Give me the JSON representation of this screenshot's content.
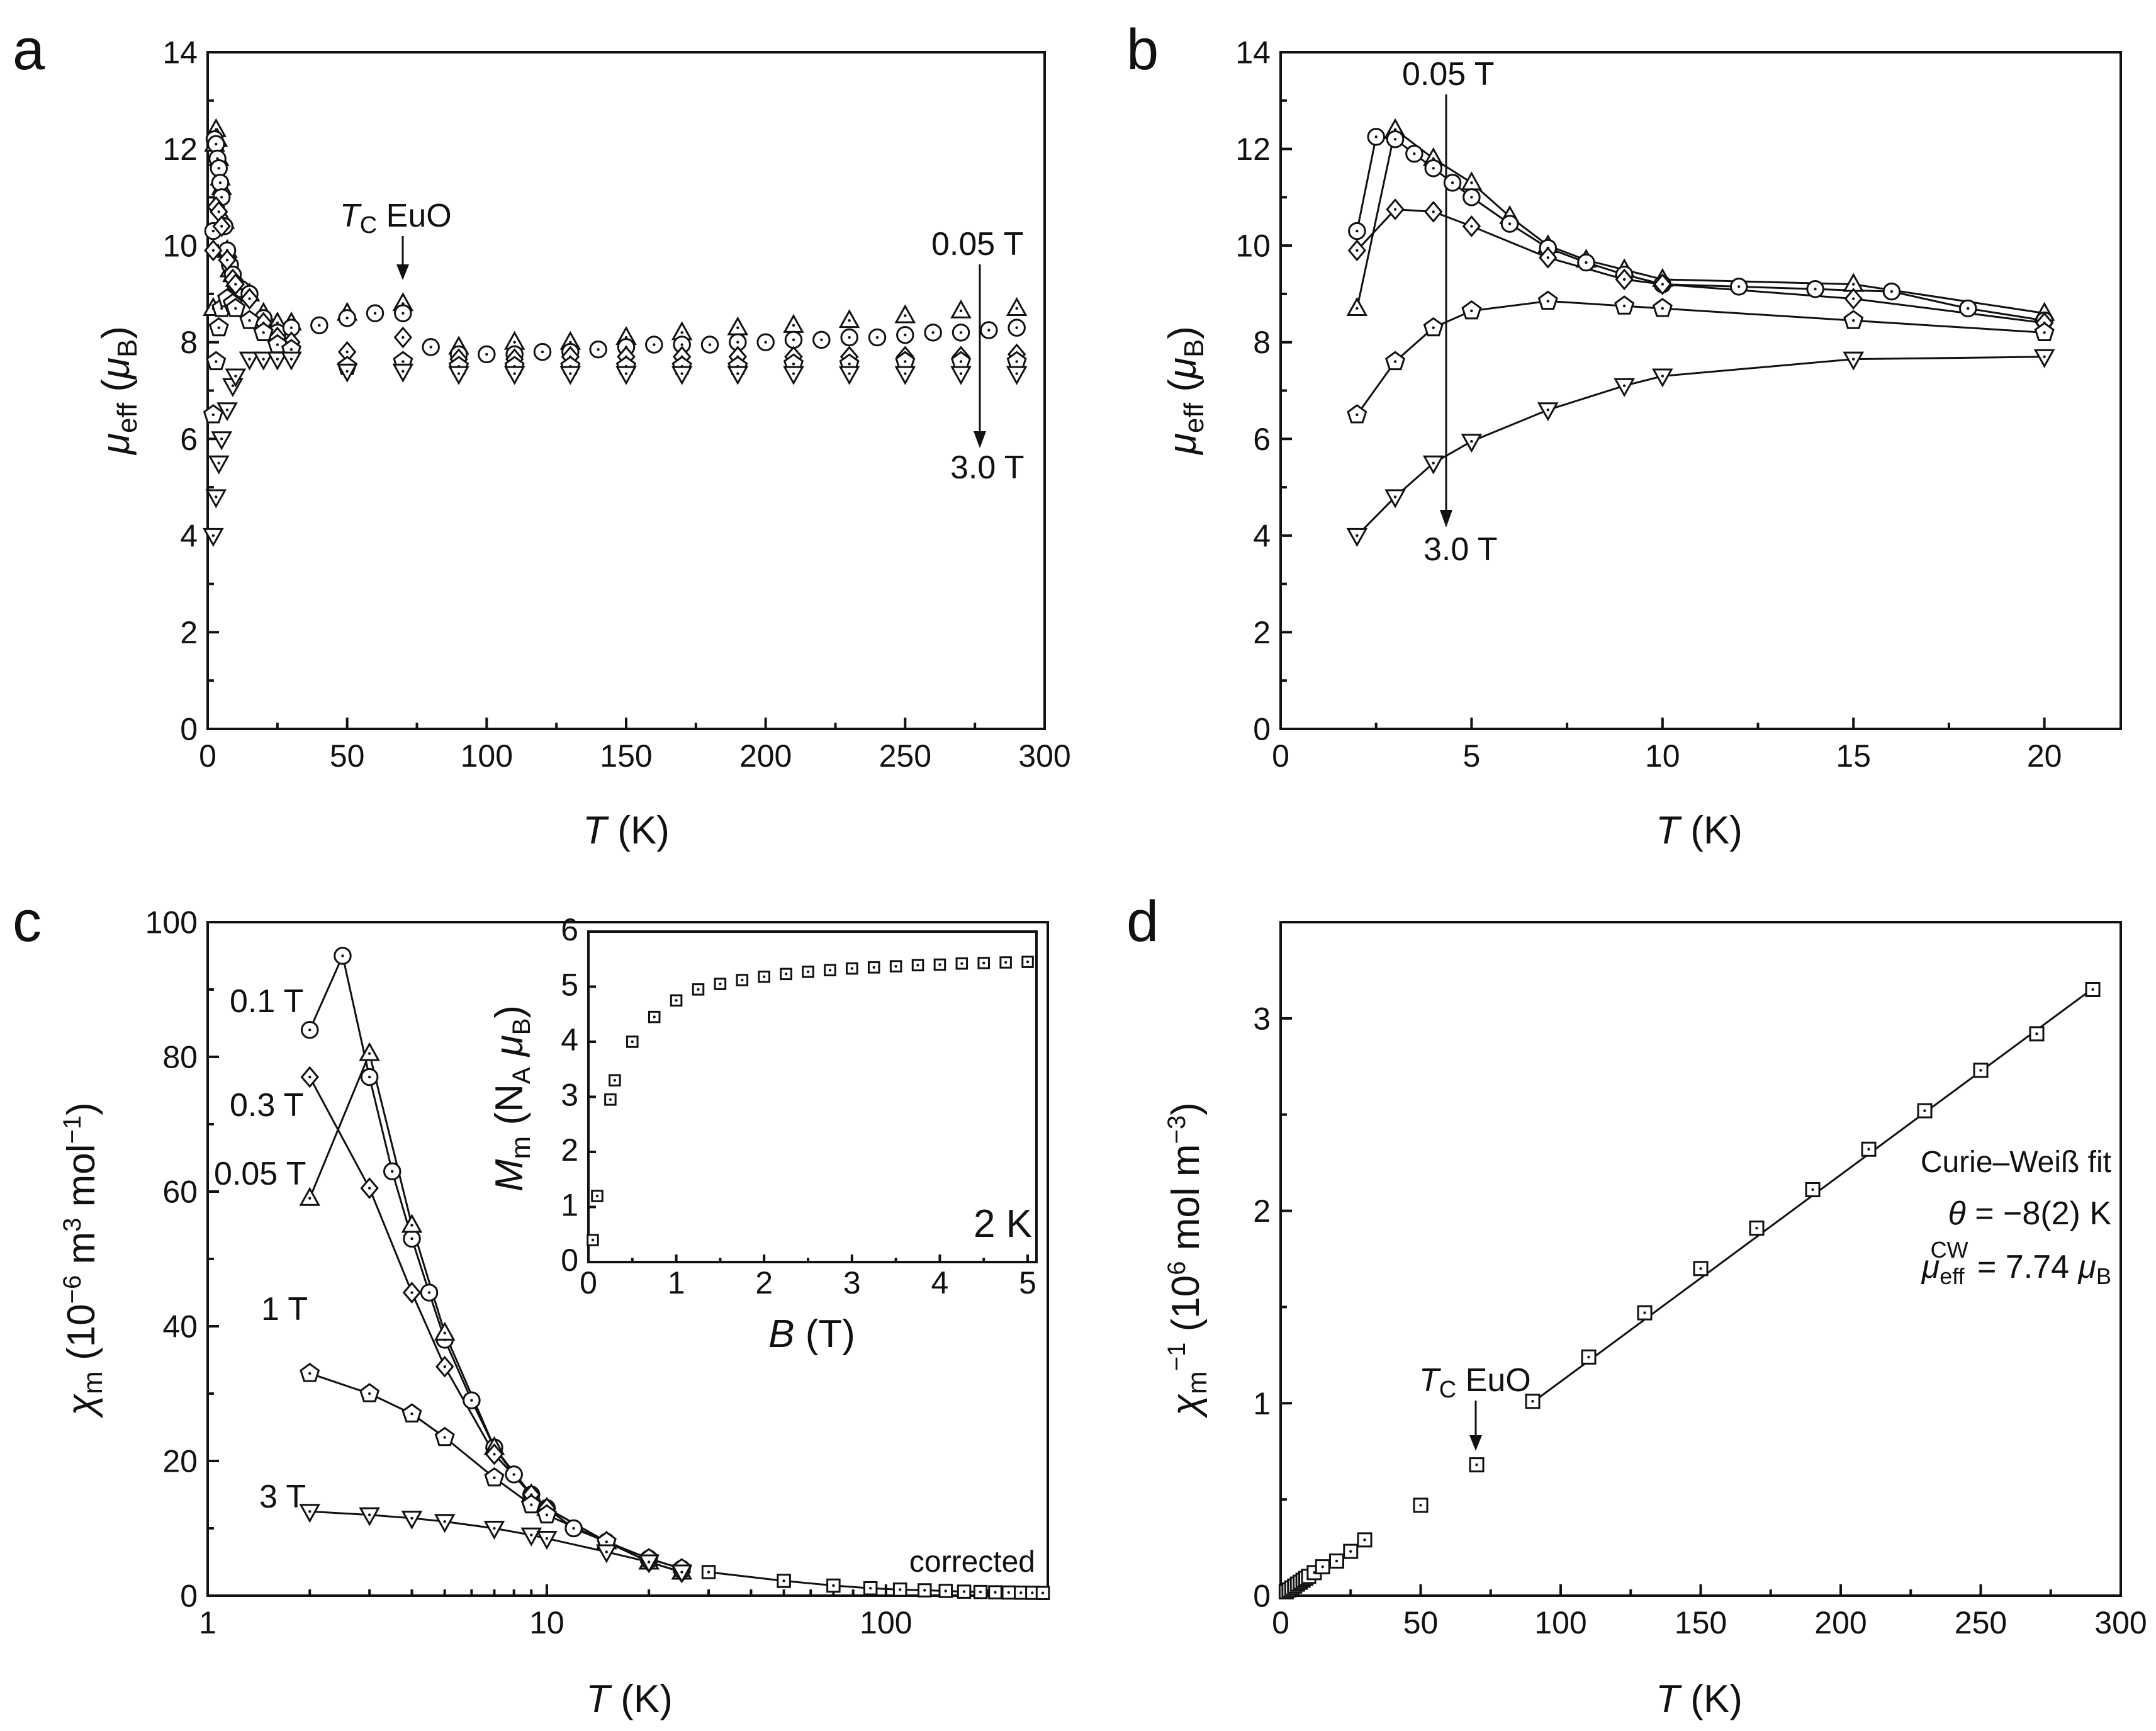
{
  "chart_data": [
    {
      "panel": "a",
      "type": "scatter",
      "xlabel": "T",
      "xunit": "(K)",
      "ylabel": "μ",
      "ysub": "eff",
      "yunit": "μ",
      "yunitsub": "B",
      "xlim": [
        0,
        300
      ],
      "ylim": [
        0,
        14
      ],
      "xticks": [
        0,
        50,
        100,
        150,
        200,
        250,
        300
      ],
      "yticks": [
        0,
        2,
        4,
        6,
        8,
        10,
        12,
        14
      ],
      "annotations": {
        "tc": "T",
        "tc_sub": "C",
        "tc_rest": " EuO",
        "top": "0.05 T",
        "bottom": "3.0 T"
      },
      "series": [
        {
          "name": "0.05 T",
          "marker": "triangle",
          "x": [
            2,
            2.5,
            3,
            3.5,
            4,
            4.5,
            5,
            6,
            7,
            8,
            9,
            10,
            12,
            15,
            20,
            25,
            30,
            50,
            70,
            90,
            110,
            130,
            150,
            170,
            190,
            210,
            230,
            250,
            270,
            290
          ],
          "y": [
            8.7,
            12.1,
            12.4,
            12.2,
            11.8,
            11.4,
            11.2,
            10.5,
            9.9,
            9.5,
            9.4,
            9.3,
            9.1,
            9.0,
            8.6,
            8.4,
            8.4,
            8.6,
            8.8,
            7.9,
            8.0,
            8.0,
            8.1,
            8.2,
            8.3,
            8.35,
            8.45,
            8.55,
            8.65,
            8.7
          ]
        },
        {
          "name": "0.1 T",
          "marker": "circle",
          "x": [
            2,
            2.5,
            3,
            3.5,
            4,
            4.5,
            5,
            6,
            7,
            8,
            9,
            10,
            12,
            15,
            20,
            25,
            30,
            40,
            50,
            60,
            70,
            80,
            90,
            100,
            110,
            120,
            130,
            140,
            150,
            160,
            170,
            180,
            190,
            200,
            210,
            220,
            230,
            240,
            250,
            260,
            270,
            280,
            290
          ],
          "y": [
            10.3,
            12.2,
            12.1,
            11.8,
            11.6,
            11.3,
            11.0,
            10.4,
            9.9,
            9.6,
            9.4,
            9.2,
            9.1,
            9.0,
            8.5,
            8.2,
            8.3,
            8.35,
            8.5,
            8.6,
            8.6,
            7.9,
            7.75,
            7.75,
            7.75,
            7.8,
            7.8,
            7.85,
            7.9,
            7.95,
            7.95,
            7.95,
            8.0,
            8.0,
            8.05,
            8.05,
            8.1,
            8.1,
            8.15,
            8.2,
            8.2,
            8.25,
            8.3
          ]
        },
        {
          "name": "0.3 T",
          "marker": "diamond",
          "x": [
            2,
            3,
            4,
            5,
            7,
            9,
            10,
            15,
            20,
            25,
            30,
            50,
            70,
            90,
            110,
            130,
            150,
            170,
            190,
            210,
            230,
            250,
            270,
            290
          ],
          "y": [
            9.9,
            10.8,
            10.7,
            10.4,
            9.7,
            9.3,
            9.2,
            8.9,
            8.4,
            8.1,
            8.0,
            7.8,
            8.1,
            7.65,
            7.65,
            7.7,
            7.7,
            7.7,
            7.7,
            7.7,
            7.7,
            7.7,
            7.7,
            7.75
          ]
        },
        {
          "name": "1 T",
          "marker": "pentagon",
          "x": [
            2,
            3,
            4,
            5,
            7,
            9,
            10,
            15,
            20,
            25,
            30,
            50,
            70,
            90,
            110,
            130,
            150,
            170,
            190,
            210,
            230,
            250,
            270,
            290
          ],
          "y": [
            6.5,
            7.6,
            8.3,
            8.7,
            8.9,
            8.8,
            8.7,
            8.45,
            8.2,
            7.95,
            7.85,
            7.5,
            7.6,
            7.5,
            7.5,
            7.5,
            7.5,
            7.5,
            7.5,
            7.55,
            7.55,
            7.6,
            7.6,
            7.6
          ]
        },
        {
          "name": "3 T",
          "marker": "down-triangle",
          "x": [
            2,
            3,
            4,
            5,
            7,
            9,
            10,
            15,
            20,
            25,
            30,
            50,
            70,
            90,
            110,
            130,
            150,
            170,
            190,
            210,
            230,
            250,
            270,
            290
          ],
          "y": [
            4.0,
            4.8,
            5.5,
            6.0,
            6.6,
            7.1,
            7.3,
            7.65,
            7.65,
            7.65,
            7.65,
            7.4,
            7.4,
            7.35,
            7.35,
            7.35,
            7.35,
            7.35,
            7.35,
            7.35,
            7.35,
            7.35,
            7.35,
            7.35
          ]
        }
      ]
    },
    {
      "panel": "b",
      "type": "line",
      "xlabel": "T",
      "xunit": "(K)",
      "ylabel": "μ",
      "ysub": "eff",
      "yunit": "μ",
      "yunitsub": "B",
      "xlim": [
        0,
        22
      ],
      "ylim": [
        0,
        14
      ],
      "xticks": [
        0,
        5,
        10,
        15,
        20
      ],
      "yticks": [
        0,
        2,
        4,
        6,
        8,
        10,
        12,
        14
      ],
      "annotations": {
        "top": "0.05 T",
        "bottom": "3.0 T"
      },
      "series": [
        {
          "name": "0.05 T",
          "marker": "triangle",
          "x": [
            2,
            3,
            4,
            5,
            6,
            7,
            8,
            9,
            10,
            15,
            20
          ],
          "y": [
            8.7,
            12.4,
            11.8,
            11.3,
            10.6,
            10.0,
            9.7,
            9.5,
            9.3,
            9.2,
            8.6
          ]
        },
        {
          "name": "0.1 T",
          "marker": "circle",
          "x": [
            2,
            2.5,
            3,
            3.5,
            4,
            4.5,
            5,
            6,
            7,
            8,
            9,
            10,
            12,
            14,
            16,
            18,
            20
          ],
          "y": [
            10.3,
            12.25,
            12.2,
            11.9,
            11.6,
            11.3,
            11.0,
            10.45,
            9.95,
            9.65,
            9.4,
            9.2,
            9.15,
            9.1,
            9.05,
            8.7,
            8.45
          ]
        },
        {
          "name": "0.3 T",
          "marker": "diamond",
          "x": [
            2,
            3,
            4,
            5,
            7,
            9,
            10,
            15,
            20
          ],
          "y": [
            9.9,
            10.75,
            10.7,
            10.4,
            9.75,
            9.3,
            9.2,
            8.9,
            8.4
          ]
        },
        {
          "name": "1 T",
          "marker": "pentagon",
          "x": [
            2,
            3,
            4,
            5,
            7,
            9,
            10,
            15,
            20
          ],
          "y": [
            6.5,
            7.6,
            8.3,
            8.65,
            8.85,
            8.75,
            8.7,
            8.45,
            8.2
          ]
        },
        {
          "name": "3 T",
          "marker": "down-triangle",
          "x": [
            2,
            3,
            4,
            5,
            7,
            9,
            10,
            15,
            20
          ],
          "y": [
            4.0,
            4.8,
            5.5,
            5.95,
            6.6,
            7.1,
            7.3,
            7.65,
            7.7
          ]
        }
      ]
    },
    {
      "panel": "c",
      "type": "line",
      "xscale": "log",
      "xlabel": "T",
      "xunit": "(K)",
      "ylabel": "χ",
      "ysub": "m",
      "yunit": "(10",
      "yunit_exp": "−6",
      "yunit_mid": " m",
      "yunit_exp2": "3",
      "yunit_end": " mol",
      "yunit_exp3": "−1",
      "yunit_close": ")",
      "xlim": [
        1,
        300
      ],
      "ylim": [
        0,
        100
      ],
      "xticks": [
        1,
        10,
        100
      ],
      "xticklabels": [
        "1",
        "10",
        "100"
      ],
      "yticks": [
        0,
        20,
        40,
        60,
        80,
        100
      ],
      "labels": {
        "l01": "0.1 T",
        "l03": "0.3 T",
        "l005": "0.05 T",
        "l1": "1 T",
        "l3": "3 T",
        "corrected": "corrected"
      },
      "series": [
        {
          "name": "0.1 T",
          "marker": "circle",
          "x": [
            2,
            2.5,
            3,
            3.5,
            4,
            4.5,
            5,
            6,
            7,
            8,
            9,
            10,
            12,
            15,
            20,
            25
          ],
          "y": [
            84,
            95,
            77,
            63,
            53,
            45,
            38,
            29,
            22,
            18,
            15,
            13,
            10,
            8,
            5.5,
            4
          ]
        },
        {
          "name": "0.05 T",
          "marker": "triangle",
          "x": [
            2,
            3,
            4,
            5,
            7,
            9,
            10,
            15,
            20,
            25
          ],
          "y": [
            59,
            80.5,
            55,
            39,
            22,
            15,
            13,
            8,
            5,
            3.5
          ]
        },
        {
          "name": "0.3 T",
          "marker": "diamond",
          "x": [
            2,
            3,
            4,
            5,
            7,
            9,
            10,
            15,
            20,
            25
          ],
          "y": [
            77,
            60.5,
            45,
            34,
            21,
            15,
            13,
            8,
            5,
            3.5
          ]
        },
        {
          "name": "1 T",
          "marker": "pentagon",
          "x": [
            2,
            3,
            4,
            5,
            7,
            9,
            10,
            15,
            20,
            25
          ],
          "y": [
            33,
            30,
            27,
            23.5,
            17.5,
            13.5,
            12,
            8,
            5.5,
            4
          ]
        },
        {
          "name": "3 T",
          "marker": "down-triangle",
          "x": [
            2,
            3,
            4,
            5,
            7,
            9,
            10,
            15,
            20,
            25
          ],
          "y": [
            12.5,
            12,
            11.5,
            11,
            10,
            9,
            8.5,
            6.5,
            5,
            3.5
          ]
        },
        {
          "name": "corrected",
          "marker": "square",
          "x": [
            30,
            50,
            70,
            90,
            110,
            130,
            150,
            170,
            190,
            210,
            230,
            250,
            270,
            290
          ],
          "y": [
            3.5,
            2.2,
            1.5,
            1.1,
            0.9,
            0.8,
            0.7,
            0.6,
            0.55,
            0.5,
            0.47,
            0.44,
            0.42,
            0.4
          ]
        }
      ],
      "inset": {
        "type": "scatter",
        "xlabel": "B",
        "xunit": "(T)",
        "ylabel": "M",
        "ysub": "m",
        "yunit": "(N",
        "yunit_sub": "A",
        "yunit_mu": " μ",
        "yunit_sub2": "B",
        "yunit_close": ")",
        "xlim": [
          0,
          5.1
        ],
        "ylim": [
          0,
          6
        ],
        "xticks": [
          0,
          1,
          2,
          3,
          4,
          5
        ],
        "yticks": [
          0,
          1,
          2,
          3,
          4,
          5,
          6
        ],
        "label": "2 K",
        "x": [
          0.05,
          0.1,
          0.25,
          0.3,
          0.5,
          0.75,
          1.0,
          1.25,
          1.5,
          1.75,
          2.0,
          2.25,
          2.5,
          2.75,
          3.0,
          3.25,
          3.5,
          3.75,
          4.0,
          4.25,
          4.5,
          4.75,
          5.0
        ],
        "y": [
          0.4,
          1.2,
          2.95,
          3.3,
          4.0,
          4.45,
          4.75,
          4.95,
          5.05,
          5.12,
          5.18,
          5.23,
          5.27,
          5.3,
          5.33,
          5.35,
          5.37,
          5.39,
          5.4,
          5.42,
          5.43,
          5.44,
          5.45
        ]
      }
    },
    {
      "panel": "d",
      "type": "scatter",
      "xlabel": "T",
      "xunit": "(K)",
      "ylabel": "χ",
      "ysub": "m",
      "ysup": "−1",
      "yunit": "(10",
      "yunit_exp": "6",
      "yunit_mid": " mol m",
      "yunit_exp2": "−3",
      "yunit_close": ")",
      "xlim": [
        0,
        300
      ],
      "ylim": [
        0,
        3.5
      ],
      "xticks": [
        0,
        50,
        100,
        150,
        200,
        250,
        300
      ],
      "yticks": [
        0,
        1,
        2,
        3
      ],
      "annotations": {
        "tc": "T",
        "tc_sub": "C",
        "tc_rest": " EuO",
        "fit_title": "Curie–Weiß fit",
        "theta_sym": "θ",
        "theta_val": " = −8(2) K",
        "mu_sym": "μ",
        "mu_sub": "eff",
        "mu_sup": "CW",
        "mu_val": " = 7.74 ",
        "mu_unit": "μ",
        "mu_unit_sub": "B"
      },
      "fit": {
        "x": [
          90,
          290
        ],
        "y": [
          1.005,
          3.155
        ]
      },
      "x": [
        2,
        3,
        4,
        5,
        6,
        7,
        8,
        9,
        10,
        12,
        15,
        20,
        25,
        30,
        50,
        70,
        90,
        110,
        130,
        150,
        170,
        190,
        210,
        230,
        250,
        270,
        290
      ],
      "y": [
        0.02,
        0.03,
        0.04,
        0.05,
        0.06,
        0.07,
        0.08,
        0.09,
        0.1,
        0.12,
        0.15,
        0.18,
        0.23,
        0.29,
        0.47,
        0.68,
        1.01,
        1.24,
        1.47,
        1.7,
        1.91,
        2.11,
        2.32,
        2.52,
        2.73,
        2.92,
        3.15
      ]
    }
  ]
}
